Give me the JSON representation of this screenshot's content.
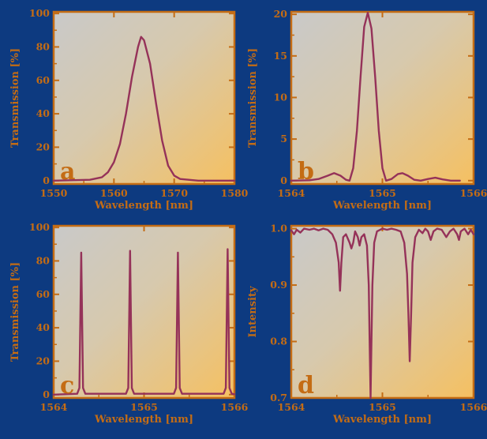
{
  "colors": {
    "background": "#0d3a80",
    "plot_gradient_start": "#c9c9c9",
    "plot_gradient_end": "#f5c061",
    "frame": "#c46c14",
    "label": "#c46c14",
    "curve": "#953259"
  },
  "chart_data": [
    {
      "id": "a",
      "type": "line",
      "panel_letter": "a",
      "xlabel": "Wavelength [nm]",
      "ylabel": "Transmission [%]",
      "xlim": [
        1550,
        1580
      ],
      "ylim": [
        -2,
        101
      ],
      "xticks": [
        1550,
        1560,
        1570,
        1580
      ],
      "yticks": [
        0,
        20,
        40,
        60,
        80,
        100
      ],
      "x_tick_labels": [
        "1550",
        "1560",
        "1570",
        "1580"
      ],
      "y_tick_labels": [
        "0",
        "20",
        "40",
        "60",
        "80",
        "100"
      ],
      "series": [
        {
          "values": [
            [
              1550,
              0
            ],
            [
              1556,
              0.5
            ],
            [
              1558,
              2
            ],
            [
              1559,
              5
            ],
            [
              1560,
              11
            ],
            [
              1561,
              22
            ],
            [
              1562,
              40
            ],
            [
              1563,
              62
            ],
            [
              1564,
              80
            ],
            [
              1564.5,
              86
            ],
            [
              1565,
              84
            ],
            [
              1566,
              70
            ],
            [
              1567,
              46
            ],
            [
              1568,
              24
            ],
            [
              1569,
              9
            ],
            [
              1570,
              3
            ],
            [
              1571,
              1
            ],
            [
              1574,
              0
            ],
            [
              1580,
              0
            ]
          ]
        }
      ]
    },
    {
      "id": "b",
      "type": "line",
      "panel_letter": "b",
      "xlabel": "Wavelength [nm]",
      "ylabel": "Transmission [%]",
      "xlim": [
        1564,
        1566
      ],
      "ylim": [
        -0.4,
        20.3
      ],
      "xticks": [
        1564,
        1565,
        1566
      ],
      "yticks": [
        0,
        5,
        10,
        15,
        20
      ],
      "x_tick_labels": [
        "1564",
        "1565",
        "1566"
      ],
      "y_tick_labels": [
        "0",
        "5",
        "10",
        "15",
        "20"
      ],
      "series": [
        {
          "values": [
            [
              1564.0,
              0
            ],
            [
              1564.2,
              0.05
            ],
            [
              1564.3,
              0.2
            ],
            [
              1564.4,
              0.6
            ],
            [
              1564.47,
              0.9
            ],
            [
              1564.54,
              0.6
            ],
            [
              1564.6,
              0.1
            ],
            [
              1564.64,
              0
            ],
            [
              1564.68,
              1.5
            ],
            [
              1564.72,
              6
            ],
            [
              1564.76,
              12.5
            ],
            [
              1564.8,
              18.5
            ],
            [
              1564.84,
              20.2
            ],
            [
              1564.88,
              18.3
            ],
            [
              1564.92,
              12.5
            ],
            [
              1564.96,
              6
            ],
            [
              1565.0,
              1.5
            ],
            [
              1565.04,
              0
            ],
            [
              1565.1,
              0.2
            ],
            [
              1565.17,
              0.8
            ],
            [
              1565.22,
              0.9
            ],
            [
              1565.28,
              0.6
            ],
            [
              1565.35,
              0.1
            ],
            [
              1565.42,
              0
            ],
            [
              1565.5,
              0.2
            ],
            [
              1565.58,
              0.35
            ],
            [
              1565.66,
              0.15
            ],
            [
              1565.75,
              0
            ],
            [
              1565.85,
              0
            ]
          ]
        }
      ]
    },
    {
      "id": "c",
      "type": "line",
      "panel_letter": "c",
      "xlabel": "Wavelength [nm]",
      "ylabel": "Transmission [%]",
      "xlim": [
        1564,
        1566
      ],
      "ylim": [
        -2,
        101
      ],
      "xticks": [
        1564,
        1565,
        1566
      ],
      "yticks": [
        0,
        20,
        40,
        60,
        80,
        100
      ],
      "x_tick_labels": [
        "1564",
        "1565",
        "1566"
      ],
      "y_tick_labels": [
        "0",
        "20",
        "40",
        "60",
        "80",
        "100"
      ],
      "series": [
        {
          "values": [
            [
              1564.0,
              0
            ],
            [
              1564.26,
              0.5
            ],
            [
              1564.285,
              4
            ],
            [
              1564.305,
              85
            ],
            [
              1564.325,
              4
            ],
            [
              1564.35,
              0.5
            ],
            [
              1564.8,
              0.5
            ],
            [
              1564.825,
              4
            ],
            [
              1564.845,
              86
            ],
            [
              1564.865,
              4
            ],
            [
              1564.89,
              0.5
            ],
            [
              1565.33,
              0.5
            ],
            [
              1565.355,
              4
            ],
            [
              1565.375,
              85
            ],
            [
              1565.395,
              4
            ],
            [
              1565.42,
              0.5
            ],
            [
              1565.88,
              0.5
            ],
            [
              1565.905,
              4
            ],
            [
              1565.925,
              87
            ],
            [
              1565.945,
              4
            ],
            [
              1565.97,
              0.5
            ],
            [
              1566.0,
              0.2
            ]
          ]
        }
      ]
    },
    {
      "id": "d",
      "type": "line",
      "panel_letter": "d",
      "xlabel": "Wavelength [nm]",
      "ylabel": "Intensity",
      "xlim": [
        1564,
        1566
      ],
      "ylim": [
        0.7,
        1.005
      ],
      "xticks": [
        1564,
        1565,
        1566
      ],
      "yticks": [
        0.7,
        0.8,
        0.9,
        1.0
      ],
      "x_tick_labels": [
        "1564",
        "1565",
        "1566"
      ],
      "y_tick_labels": [
        "0.7",
        "0.8",
        "0.9",
        "1.0"
      ],
      "series": [
        {
          "values": [
            [
              1564.0,
              0.997
            ],
            [
              1564.03,
              0.99
            ],
            [
              1564.06,
              0.998
            ],
            [
              1564.1,
              0.993
            ],
            [
              1564.14,
              1.0
            ],
            [
              1564.2,
              0.998
            ],
            [
              1564.25,
              1.0
            ],
            [
              1564.3,
              0.997
            ],
            [
              1564.35,
              1.0
            ],
            [
              1564.4,
              0.998
            ],
            [
              1564.45,
              0.99
            ],
            [
              1564.49,
              0.975
            ],
            [
              1564.52,
              0.94
            ],
            [
              1564.535,
              0.89
            ],
            [
              1564.55,
              0.94
            ],
            [
              1564.57,
              0.985
            ],
            [
              1564.6,
              0.99
            ],
            [
              1564.64,
              0.975
            ],
            [
              1564.66,
              0.965
            ],
            [
              1564.68,
              0.975
            ],
            [
              1564.7,
              0.995
            ],
            [
              1564.73,
              0.985
            ],
            [
              1564.75,
              0.97
            ],
            [
              1564.77,
              0.985
            ],
            [
              1564.8,
              0.99
            ],
            [
              1564.83,
              0.97
            ],
            [
              1564.85,
              0.9
            ],
            [
              1564.86,
              0.8
            ],
            [
              1564.87,
              0.7
            ],
            [
              1564.88,
              0.8
            ],
            [
              1564.89,
              0.9
            ],
            [
              1564.91,
              0.975
            ],
            [
              1564.94,
              0.995
            ],
            [
              1565.0,
              1.0
            ],
            [
              1565.05,
              0.998
            ],
            [
              1565.1,
              1.0
            ],
            [
              1565.15,
              0.998
            ],
            [
              1565.2,
              0.995
            ],
            [
              1565.24,
              0.975
            ],
            [
              1565.27,
              0.92
            ],
            [
              1565.285,
              0.85
            ],
            [
              1565.3,
              0.765
            ],
            [
              1565.315,
              0.85
            ],
            [
              1565.33,
              0.94
            ],
            [
              1565.36,
              0.985
            ],
            [
              1565.4,
              0.998
            ],
            [
              1565.44,
              0.992
            ],
            [
              1565.47,
              1.0
            ],
            [
              1565.5,
              0.995
            ],
            [
              1565.53,
              0.98
            ],
            [
              1565.56,
              0.995
            ],
            [
              1565.6,
              1.0
            ],
            [
              1565.65,
              0.998
            ],
            [
              1565.7,
              0.985
            ],
            [
              1565.74,
              0.995
            ],
            [
              1565.78,
              1.0
            ],
            [
              1565.82,
              0.99
            ],
            [
              1565.84,
              0.98
            ],
            [
              1565.86,
              0.995
            ],
            [
              1565.9,
              1.0
            ],
            [
              1565.94,
              0.99
            ],
            [
              1565.97,
              0.998
            ],
            [
              1566.0,
              0.99
            ]
          ]
        }
      ]
    }
  ]
}
